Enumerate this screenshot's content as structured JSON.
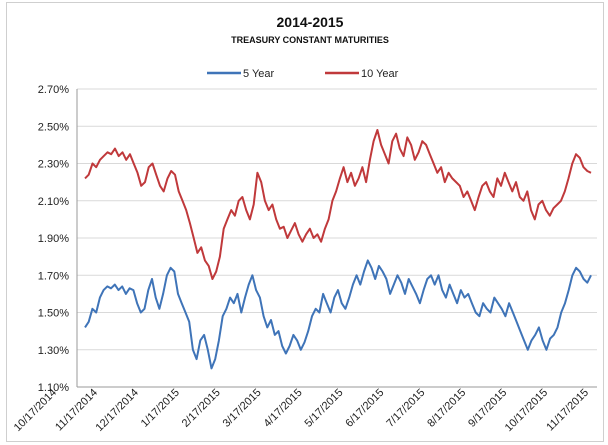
{
  "chart_data": {
    "type": "line",
    "title": "2014-2015",
    "subtitle": "TREASURY CONSTANT MATURITIES",
    "xlabel": "",
    "ylabel": "",
    "ylim": [
      1.1,
      2.7
    ],
    "yticks": [
      "1.10%",
      "1.30%",
      "1.50%",
      "1.70%",
      "1.90%",
      "2.10%",
      "2.30%",
      "2.50%",
      "2.70%"
    ],
    "ytick_values": [
      1.1,
      1.3,
      1.5,
      1.7,
      1.9,
      2.1,
      2.3,
      2.5,
      2.7
    ],
    "xticks": [
      "10/17/2014",
      "11/17/2014",
      "12/17/2014",
      "1/17/2015",
      "2/17/2015",
      "3/17/2015",
      "4/17/2015",
      "5/17/2015",
      "6/17/2015",
      "7/17/2015",
      "8/17/2015",
      "9/17/2015",
      "10/17/2015",
      "11/17/2015"
    ],
    "grid": "horizontal",
    "legend": "top-center",
    "series": [
      {
        "name": "5 Year",
        "color": "#3f74b8",
        "values": [
          1.42,
          1.45,
          1.52,
          1.5,
          1.58,
          1.62,
          1.64,
          1.63,
          1.65,
          1.62,
          1.64,
          1.6,
          1.63,
          1.62,
          1.55,
          1.5,
          1.52,
          1.62,
          1.68,
          1.58,
          1.52,
          1.6,
          1.7,
          1.74,
          1.72,
          1.6,
          1.55,
          1.5,
          1.45,
          1.3,
          1.25,
          1.35,
          1.38,
          1.3,
          1.2,
          1.25,
          1.35,
          1.48,
          1.52,
          1.58,
          1.55,
          1.6,
          1.5,
          1.58,
          1.65,
          1.7,
          1.62,
          1.58,
          1.48,
          1.42,
          1.46,
          1.38,
          1.4,
          1.32,
          1.28,
          1.32,
          1.38,
          1.35,
          1.3,
          1.34,
          1.4,
          1.48,
          1.52,
          1.5,
          1.6,
          1.55,
          1.5,
          1.58,
          1.62,
          1.55,
          1.52,
          1.58,
          1.65,
          1.7,
          1.65,
          1.72,
          1.78,
          1.74,
          1.68,
          1.75,
          1.72,
          1.68,
          1.6,
          1.65,
          1.7,
          1.66,
          1.6,
          1.68,
          1.64,
          1.6,
          1.55,
          1.62,
          1.68,
          1.7,
          1.65,
          1.7,
          1.62,
          1.58,
          1.65,
          1.6,
          1.55,
          1.62,
          1.58,
          1.6,
          1.55,
          1.5,
          1.48,
          1.55,
          1.52,
          1.5,
          1.58,
          1.55,
          1.52,
          1.48,
          1.55,
          1.5,
          1.45,
          1.4,
          1.35,
          1.3,
          1.35,
          1.38,
          1.42,
          1.35,
          1.3,
          1.36,
          1.38,
          1.42,
          1.5,
          1.55,
          1.62,
          1.7,
          1.74,
          1.72,
          1.68,
          1.66,
          1.7
        ]
      },
      {
        "name": "10 Year",
        "color": "#c0393b",
        "values": [
          2.22,
          2.24,
          2.3,
          2.28,
          2.32,
          2.34,
          2.36,
          2.35,
          2.38,
          2.34,
          2.36,
          2.32,
          2.35,
          2.3,
          2.25,
          2.18,
          2.2,
          2.28,
          2.3,
          2.24,
          2.18,
          2.15,
          2.22,
          2.26,
          2.24,
          2.15,
          2.1,
          2.05,
          1.98,
          1.9,
          1.82,
          1.85,
          1.78,
          1.75,
          1.68,
          1.72,
          1.8,
          1.95,
          2.0,
          2.05,
          2.02,
          2.1,
          2.12,
          2.05,
          2.0,
          2.08,
          2.25,
          2.2,
          2.1,
          2.05,
          2.08,
          2.0,
          1.95,
          1.96,
          1.9,
          1.94,
          1.98,
          1.92,
          1.88,
          1.92,
          1.95,
          1.9,
          1.92,
          1.88,
          1.95,
          2.0,
          2.1,
          2.15,
          2.22,
          2.28,
          2.2,
          2.25,
          2.18,
          2.22,
          2.28,
          2.2,
          2.32,
          2.42,
          2.48,
          2.4,
          2.35,
          2.3,
          2.42,
          2.46,
          2.38,
          2.34,
          2.44,
          2.4,
          2.32,
          2.36,
          2.42,
          2.4,
          2.35,
          2.3,
          2.25,
          2.28,
          2.2,
          2.25,
          2.22,
          2.2,
          2.18,
          2.12,
          2.15,
          2.1,
          2.05,
          2.12,
          2.18,
          2.2,
          2.15,
          2.12,
          2.22,
          2.18,
          2.25,
          2.2,
          2.15,
          2.2,
          2.12,
          2.1,
          2.15,
          2.05,
          2.0,
          2.08,
          2.1,
          2.05,
          2.02,
          2.06,
          2.08,
          2.1,
          2.15,
          2.22,
          2.3,
          2.35,
          2.33,
          2.28,
          2.26,
          2.25
        ]
      }
    ]
  }
}
